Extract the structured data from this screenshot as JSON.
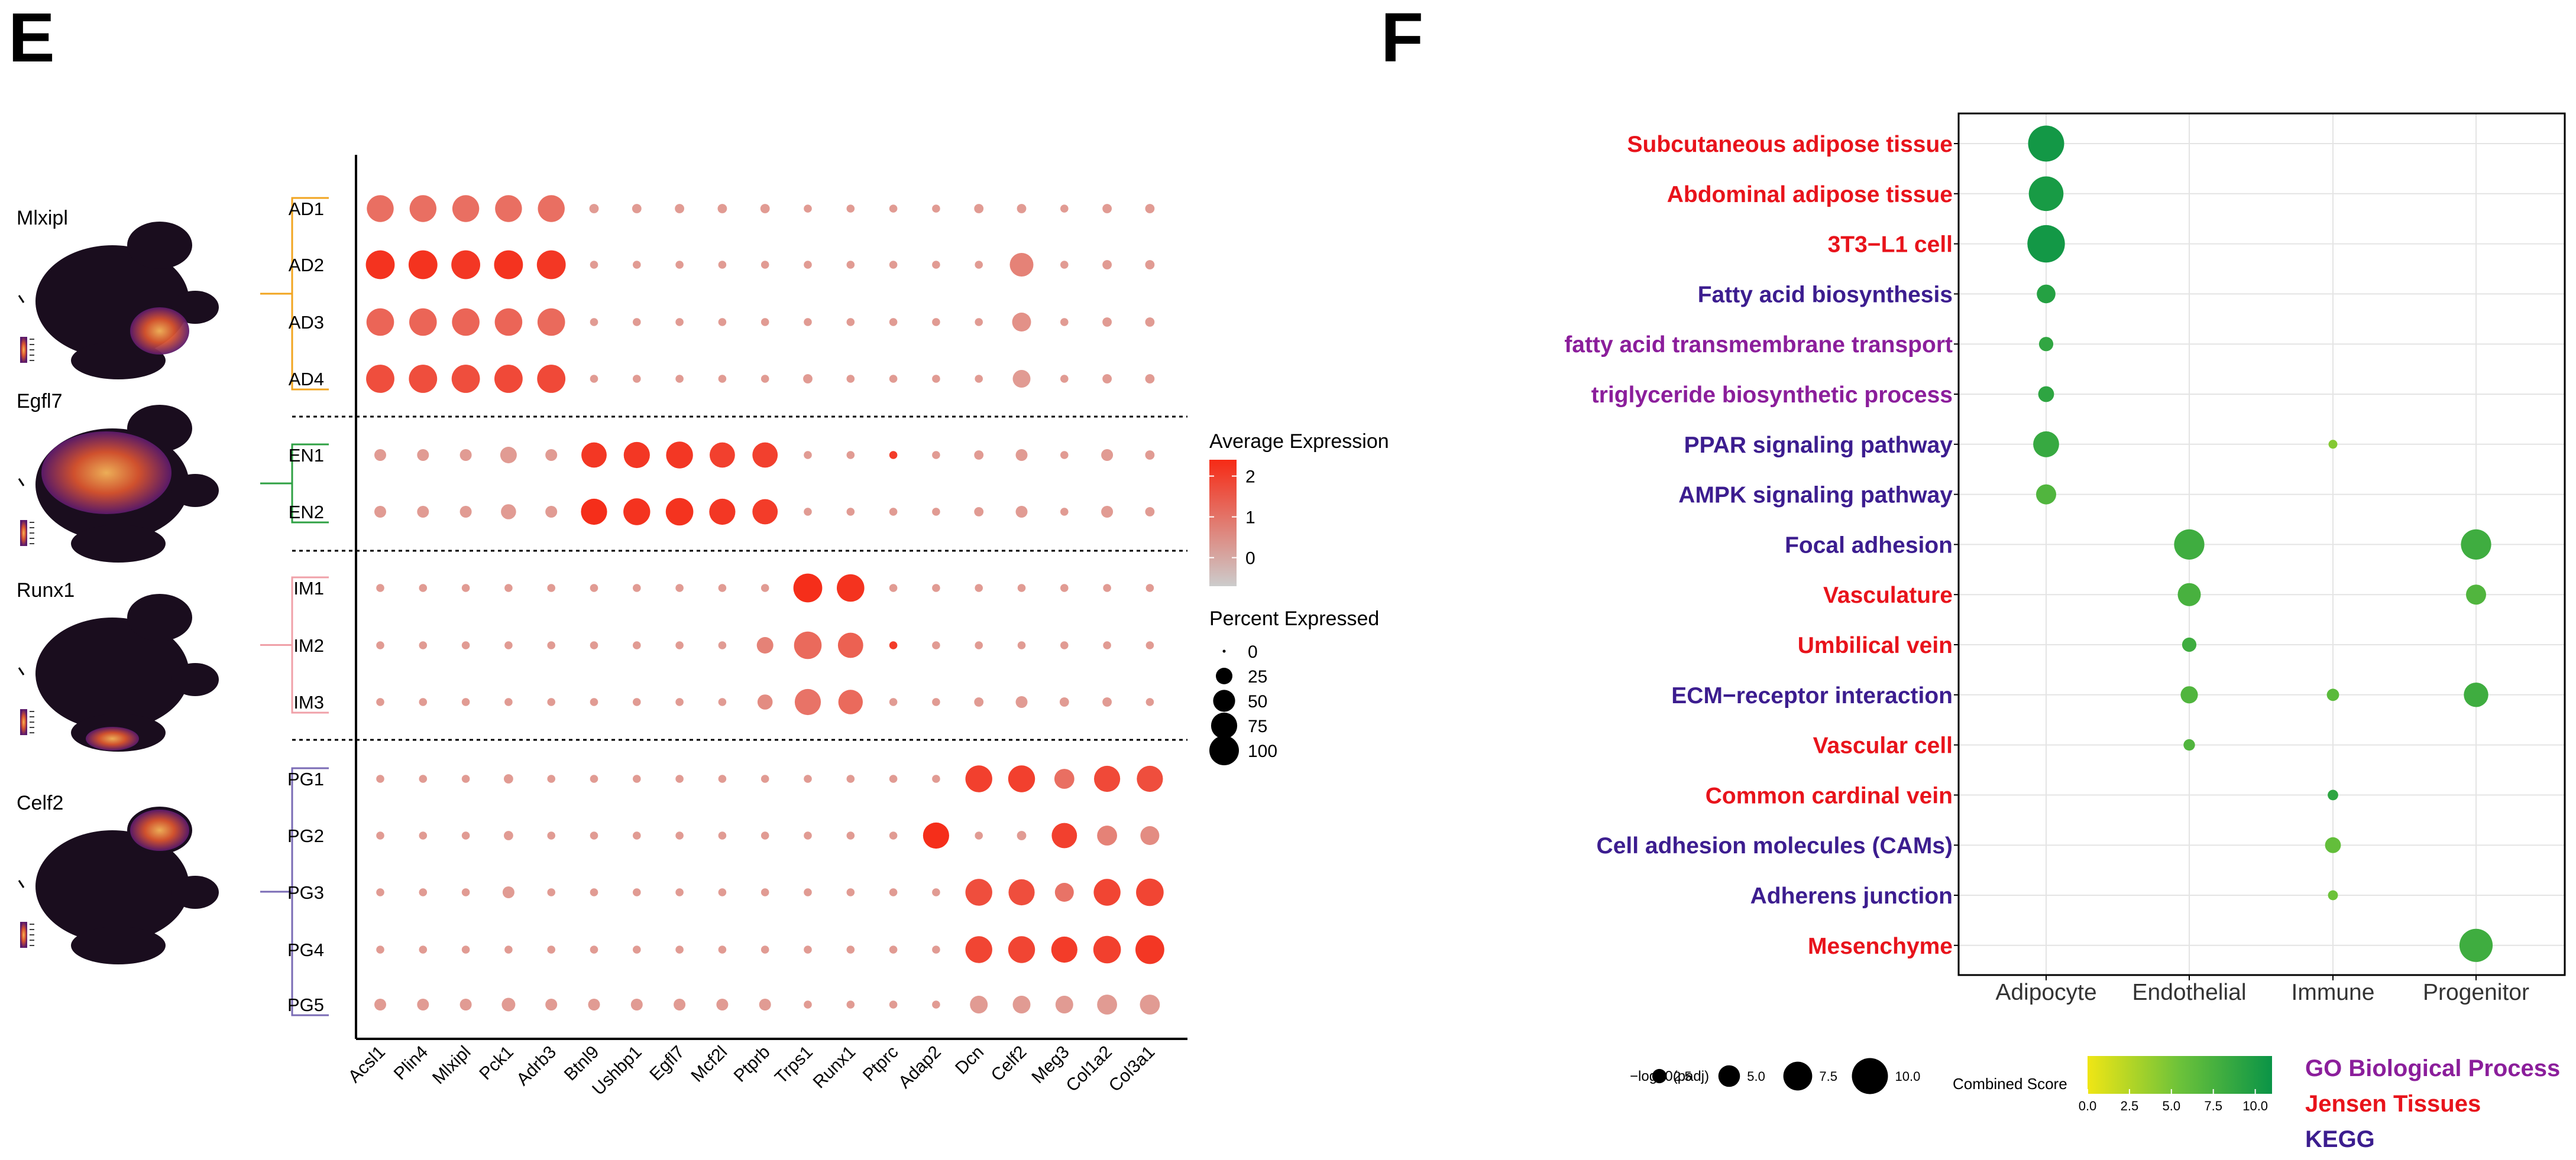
{
  "panels": {
    "e_label": "E",
    "f_label": "F"
  },
  "chart_data": [
    {
      "type": "scatter",
      "subtype": "dot-plot",
      "panel": "E",
      "genes": [
        "Acsl1",
        "Plin4",
        "Mlxipl",
        "Pck1",
        "Adrb3",
        "Btnl9",
        "Ushbp1",
        "Egfl7",
        "Mcf2l",
        "Ptprb",
        "Trps1",
        "Runx1",
        "Ptprc",
        "Adap2",
        "Dcn",
        "Celf2",
        "Meg3",
        "Col1a2",
        "Col3a1"
      ],
      "clusters": [
        "AD1",
        "AD2",
        "AD3",
        "AD4",
        "EN1",
        "EN2",
        "IM1",
        "IM2",
        "IM3",
        "PG1",
        "PG2",
        "PG3",
        "PG4",
        "PG5"
      ],
      "groups": [
        {
          "name": "AD",
          "color": "#F2A41F",
          "clusters": [
            "AD1",
            "AD2",
            "AD3",
            "AD4"
          ]
        },
        {
          "name": "EN",
          "color": "#2EA043",
          "clusters": [
            "EN1",
            "EN2"
          ]
        },
        {
          "name": "IM",
          "color": "#F0A0A8",
          "clusters": [
            "IM1",
            "IM2",
            "IM3"
          ]
        },
        {
          "name": "PG",
          "color": "#7A6BB5",
          "clusters": [
            "PG1",
            "PG2",
            "PG3",
            "PG4",
            "PG5"
          ]
        }
      ],
      "feature_plots": [
        "Mlxipl",
        "Egfl7",
        "Runx1",
        "Celf2"
      ],
      "percent_expressed": [
        [
          80,
          80,
          80,
          80,
          80,
          5,
          5,
          5,
          5,
          5,
          3,
          3,
          3,
          3,
          5,
          5,
          3,
          5,
          5
        ],
        [
          95,
          95,
          95,
          95,
          95,
          3,
          3,
          3,
          3,
          3,
          3,
          3,
          3,
          3,
          3,
          60,
          3,
          5,
          5
        ],
        [
          85,
          85,
          85,
          85,
          85,
          3,
          3,
          3,
          3,
          3,
          3,
          3,
          3,
          3,
          3,
          35,
          3,
          5,
          5
        ],
        [
          90,
          90,
          90,
          90,
          90,
          3,
          3,
          3,
          3,
          3,
          5,
          3,
          3,
          3,
          3,
          30,
          3,
          5,
          5
        ],
        [
          10,
          10,
          10,
          25,
          10,
          70,
          75,
          80,
          70,
          70,
          3,
          3,
          3,
          3,
          5,
          10,
          3,
          10,
          5
        ],
        [
          10,
          10,
          10,
          20,
          10,
          75,
          80,
          85,
          75,
          70,
          3,
          3,
          3,
          3,
          5,
          10,
          3,
          10,
          5
        ],
        [
          3,
          3,
          3,
          3,
          3,
          3,
          3,
          3,
          3,
          3,
          95,
          85,
          3,
          3,
          3,
          3,
          3,
          3,
          3
        ],
        [
          3,
          3,
          3,
          3,
          3,
          3,
          3,
          3,
          3,
          25,
          85,
          70,
          3,
          3,
          3,
          3,
          3,
          3,
          3
        ],
        [
          3,
          3,
          3,
          3,
          3,
          3,
          3,
          3,
          3,
          20,
          75,
          65,
          3,
          3,
          5,
          10,
          5,
          5,
          3
        ],
        [
          3,
          3,
          3,
          5,
          3,
          3,
          3,
          3,
          3,
          3,
          3,
          3,
          3,
          3,
          80,
          80,
          40,
          75,
          75
        ],
        [
          3,
          3,
          3,
          5,
          3,
          3,
          3,
          3,
          3,
          3,
          3,
          3,
          3,
          75,
          3,
          5,
          70,
          40,
          35
        ],
        [
          3,
          3,
          3,
          10,
          3,
          3,
          3,
          3,
          3,
          3,
          3,
          3,
          3,
          3,
          80,
          75,
          35,
          80,
          85
        ],
        [
          3,
          3,
          3,
          3,
          3,
          3,
          3,
          3,
          3,
          3,
          3,
          3,
          3,
          3,
          80,
          80,
          75,
          85,
          95
        ],
        [
          10,
          10,
          10,
          15,
          10,
          10,
          10,
          10,
          10,
          10,
          3,
          3,
          3,
          3,
          30,
          30,
          30,
          40,
          40
        ]
      ],
      "average_expression": [
        [
          0.9,
          0.9,
          0.9,
          0.9,
          0.9,
          0,
          0,
          0,
          0,
          0,
          0,
          0,
          0,
          0,
          0,
          0,
          0,
          0,
          0
        ],
        [
          2.2,
          2.2,
          2.1,
          2.2,
          2.1,
          0,
          0,
          0,
          0,
          0,
          0,
          0,
          0,
          0,
          0,
          0.5,
          0,
          0,
          0
        ],
        [
          1.1,
          1.1,
          1.1,
          1.1,
          1.0,
          0,
          0,
          0,
          0,
          0,
          0,
          0,
          0,
          0,
          0,
          0.2,
          0,
          0,
          0
        ],
        [
          1.6,
          1.6,
          1.6,
          1.7,
          1.7,
          0,
          0,
          0,
          0,
          0,
          0,
          0,
          0,
          0,
          0,
          0,
          0,
          0,
          0
        ],
        [
          0,
          0,
          0,
          0,
          0,
          2.1,
          2.1,
          2.1,
          1.9,
          1.9,
          0,
          0,
          2.0,
          0,
          0,
          0,
          0,
          0,
          0
        ],
        [
          0,
          0,
          0,
          0,
          0,
          2.3,
          2.2,
          2.2,
          2.1,
          2.0,
          0,
          0,
          0,
          0,
          0,
          0,
          0,
          0,
          0
        ],
        [
          0,
          0,
          0,
          0,
          0,
          0,
          0,
          0,
          0,
          0,
          2.3,
          2.2,
          0,
          0,
          0,
          0,
          0,
          0,
          0
        ],
        [
          0,
          0,
          0,
          0,
          0,
          0,
          0,
          0,
          0,
          0.5,
          1.0,
          1.2,
          2.0,
          0,
          0,
          0,
          0,
          0,
          0
        ],
        [
          0,
          0,
          0,
          0,
          0,
          0,
          0,
          0,
          0,
          0.3,
          0.8,
          1.0,
          0,
          0,
          0,
          0,
          0,
          0,
          0
        ],
        [
          0,
          0,
          0,
          0,
          0,
          0,
          0,
          0,
          0,
          0,
          0,
          0,
          0,
          0,
          1.9,
          1.9,
          0.9,
          1.7,
          1.6
        ],
        [
          0,
          0,
          0,
          0,
          0,
          0,
          0,
          0,
          0,
          0,
          0,
          0,
          0,
          2.3,
          0,
          0,
          1.9,
          0.5,
          0.3
        ],
        [
          0,
          0,
          0,
          0,
          0,
          0,
          0,
          0,
          0,
          0,
          0,
          0,
          0,
          0,
          1.6,
          1.6,
          0.8,
          1.8,
          1.8
        ],
        [
          0,
          0,
          0,
          0,
          0,
          0,
          0,
          0,
          0,
          0,
          0,
          0,
          0,
          0,
          1.8,
          1.8,
          2.0,
          1.9,
          2.1
        ],
        [
          0,
          0,
          0,
          0,
          0,
          0,
          0,
          0,
          0,
          0,
          0,
          0,
          0,
          0,
          0,
          0,
          0,
          0,
          0
        ]
      ],
      "legend_color": {
        "title": "Average Expression",
        "ticks": [
          "2",
          "1",
          "0"
        ],
        "values": [
          2,
          1,
          0
        ],
        "range": [
          -0.7,
          2.4
        ],
        "low_color": "#CCCCCC",
        "high_color": "#F62A15"
      },
      "legend_size": {
        "title": "Percent Expressed",
        "labels": [
          "0",
          "25",
          "50",
          "75",
          "100"
        ],
        "values": [
          0,
          25,
          50,
          75,
          100
        ]
      }
    },
    {
      "type": "scatter",
      "subtype": "dot-plot",
      "panel": "F",
      "terms": [
        {
          "name": "Subcutaneous adipose tissue",
          "source": "Jensen Tissues"
        },
        {
          "name": "Abdominal adipose tissue",
          "source": "Jensen Tissues"
        },
        {
          "name": "3T3−L1 cell",
          "source": "Jensen Tissues"
        },
        {
          "name": "Fatty acid biosynthesis",
          "source": "KEGG"
        },
        {
          "name": "fatty acid transmembrane transport",
          "source": "GO Biological Process"
        },
        {
          "name": "triglyceride biosynthetic process",
          "source": "GO Biological Process"
        },
        {
          "name": "PPAR signaling pathway",
          "source": "KEGG"
        },
        {
          "name": "AMPK signaling pathway",
          "source": "KEGG"
        },
        {
          "name": "Focal adhesion",
          "source": "KEGG"
        },
        {
          "name": "Vasculature",
          "source": "Jensen Tissues"
        },
        {
          "name": "Umbilical vein",
          "source": "Jensen Tissues"
        },
        {
          "name": "ECM−receptor interaction",
          "source": "KEGG"
        },
        {
          "name": "Vascular cell",
          "source": "Jensen Tissues"
        },
        {
          "name": "Common cardinal vein",
          "source": "Jensen Tissues"
        },
        {
          "name": "Cell adhesion molecules (CAMs)",
          "source": "KEGG"
        },
        {
          "name": "Adherens junction",
          "source": "KEGG"
        },
        {
          "name": "Mesenchyme",
          "source": "Jensen Tissues"
        }
      ],
      "categories": [
        "Adipocyte",
        "Endothelial",
        "Immune",
        "Progenitor"
      ],
      "points": [
        {
          "term": 0,
          "cat": 0,
          "padj": 10.0,
          "score": 10.5
        },
        {
          "term": 1,
          "cat": 0,
          "padj": 9.5,
          "score": 10.2
        },
        {
          "term": 2,
          "cat": 0,
          "padj": 10.5,
          "score": 10.5
        },
        {
          "term": 3,
          "cat": 0,
          "padj": 4.0,
          "score": 9.5
        },
        {
          "term": 4,
          "cat": 0,
          "padj": 2.5,
          "score": 8.8
        },
        {
          "term": 5,
          "cat": 0,
          "padj": 3.0,
          "score": 9.0
        },
        {
          "term": 6,
          "cat": 0,
          "padj": 6.5,
          "score": 8.5
        },
        {
          "term": 6,
          "cat": 2,
          "padj": 0.6,
          "score": 4.5
        },
        {
          "term": 7,
          "cat": 0,
          "padj": 4.5,
          "score": 7.0
        },
        {
          "term": 8,
          "cat": 1,
          "padj": 8.0,
          "score": 8.0
        },
        {
          "term": 8,
          "cat": 3,
          "padj": 8.0,
          "score": 8.0
        },
        {
          "term": 9,
          "cat": 1,
          "padj": 5.5,
          "score": 7.5
        },
        {
          "term": 9,
          "cat": 3,
          "padj": 4.5,
          "score": 7.0
        },
        {
          "term": 10,
          "cat": 1,
          "padj": 2.5,
          "score": 8.0
        },
        {
          "term": 11,
          "cat": 1,
          "padj": 3.5,
          "score": 7.0
        },
        {
          "term": 11,
          "cat": 2,
          "padj": 1.8,
          "score": 6.5
        },
        {
          "term": 11,
          "cat": 3,
          "padj": 6.0,
          "score": 8.0
        },
        {
          "term": 12,
          "cat": 1,
          "padj": 1.5,
          "score": 7.0
        },
        {
          "term": 13,
          "cat": 2,
          "padj": 1.2,
          "score": 9.0
        },
        {
          "term": 14,
          "cat": 2,
          "padj": 3.0,
          "score": 6.0
        },
        {
          "term": 15,
          "cat": 2,
          "padj": 1.0,
          "score": 5.5
        },
        {
          "term": 16,
          "cat": 3,
          "padj": 9.0,
          "score": 8.0
        }
      ],
      "legend_size": {
        "title": "−log10(padj)",
        "labels": [
          "2.5",
          "5.0",
          "7.5",
          "10.0"
        ],
        "values": [
          2.5,
          5.0,
          7.5,
          10.0
        ]
      },
      "legend_color": {
        "title": "Combined Score",
        "labels": [
          "0.0",
          "2.5",
          "5.0",
          "7.5",
          "10.0"
        ],
        "range": [
          0,
          11
        ],
        "low_color": "#F0E615",
        "high_color": "#0A9447"
      },
      "legend_source": [
        {
          "label": "GO Biological Process",
          "color": "#8B1E9B"
        },
        {
          "label": "Jensen Tissues",
          "color": "#E8131B"
        },
        {
          "label": "KEGG",
          "color": "#3C1D8F"
        }
      ]
    }
  ]
}
